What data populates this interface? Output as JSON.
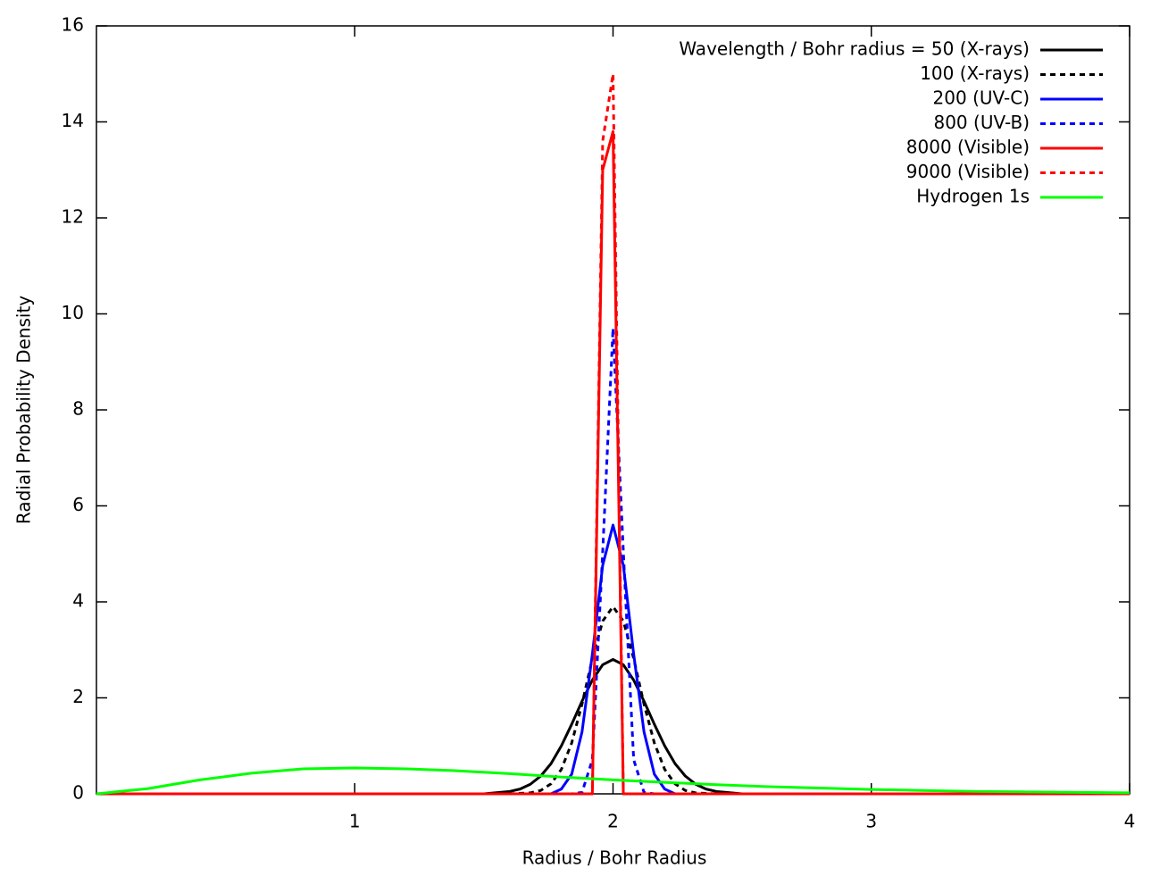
{
  "chart_data": {
    "type": "line",
    "xlabel": "Radius / Bohr Radius",
    "ylabel": "Radial Probability Density",
    "xlim": [
      0,
      4
    ],
    "xticks": [
      1,
      2,
      3,
      4
    ],
    "ylim": [
      0,
      16
    ],
    "yticks": [
      0,
      2,
      4,
      6,
      8,
      10,
      12,
      14,
      16
    ],
    "legend": "top-right",
    "series": [
      {
        "name": "Wavelength / Bohr radius = 50 (X-rays)",
        "color": "#000000",
        "dash": false,
        "x": [
          0,
          1.5,
          1.6,
          1.64,
          1.68,
          1.72,
          1.76,
          1.8,
          1.84,
          1.88,
          1.92,
          1.96,
          2.0,
          2.04,
          2.08,
          2.12,
          2.16,
          2.2,
          2.24,
          2.28,
          2.32,
          2.36,
          2.4,
          2.5,
          4
        ],
        "values": [
          0,
          0,
          0.05,
          0.1,
          0.2,
          0.37,
          0.63,
          1.0,
          1.45,
          1.93,
          2.37,
          2.69,
          2.8,
          2.69,
          2.37,
          1.93,
          1.45,
          1.0,
          0.63,
          0.37,
          0.2,
          0.1,
          0.05,
          0,
          0
        ]
      },
      {
        "name": "100 (X-rays)",
        "color": "#000000",
        "dash": true,
        "x": [
          0,
          1.6,
          1.68,
          1.72,
          1.76,
          1.8,
          1.84,
          1.88,
          1.92,
          1.96,
          2.0,
          2.04,
          2.08,
          2.12,
          2.16,
          2.2,
          2.24,
          2.28,
          2.32,
          2.4,
          4
        ],
        "values": [
          0,
          0,
          0.02,
          0.07,
          0.21,
          0.51,
          1.06,
          1.87,
          2.82,
          3.6,
          3.9,
          3.6,
          2.82,
          1.87,
          1.06,
          0.51,
          0.21,
          0.07,
          0.02,
          0,
          0
        ]
      },
      {
        "name": "200 (UV-C)",
        "color": "#0000ff",
        "dash": false,
        "x": [
          0,
          1.76,
          1.8,
          1.84,
          1.88,
          1.92,
          1.96,
          2.0,
          2.04,
          2.08,
          2.12,
          2.16,
          2.2,
          2.24,
          4
        ],
        "values": [
          0,
          0,
          0.1,
          0.41,
          1.29,
          2.91,
          4.76,
          5.6,
          4.76,
          2.91,
          1.29,
          0.41,
          0.1,
          0,
          0
        ]
      },
      {
        "name": "800 (UV-B)",
        "color": "#0000ff",
        "dash": true,
        "x": [
          0,
          1.84,
          1.88,
          1.92,
          1.96,
          2.0,
          2.04,
          2.08,
          2.12,
          2.16,
          4
        ],
        "values": [
          0,
          0,
          0.03,
          0.71,
          5.04,
          9.7,
          5.04,
          0.71,
          0.03,
          0,
          0
        ]
      },
      {
        "name": "8000 (Visible)",
        "color": "#ff0000",
        "dash": false,
        "x": [
          0,
          1.92,
          1.96,
          2.0,
          2.04,
          4
        ],
        "values": [
          0,
          0,
          13.0,
          13.8,
          0,
          0
        ]
      },
      {
        "name": "9000 (Visible)",
        "color": "#ff0000",
        "dash": true,
        "x": [
          0,
          1.92,
          1.96,
          2.0,
          2.04,
          4
        ],
        "values": [
          0,
          0,
          13.6,
          15.0,
          0,
          0
        ]
      },
      {
        "name": "Hydrogen 1s",
        "color": "#00ff00",
        "dash": false,
        "x": [
          0,
          0.2,
          0.4,
          0.6,
          0.8,
          1.0,
          1.2,
          1.4,
          1.6,
          1.8,
          2.0,
          2.2,
          2.4,
          2.6,
          2.8,
          3.0,
          3.2,
          3.4,
          3.6,
          3.8,
          4.0
        ],
        "values": [
          0,
          0.11,
          0.29,
          0.43,
          0.52,
          0.54,
          0.52,
          0.48,
          0.42,
          0.35,
          0.29,
          0.24,
          0.19,
          0.15,
          0.12,
          0.09,
          0.07,
          0.05,
          0.04,
          0.03,
          0.02
        ]
      }
    ]
  }
}
